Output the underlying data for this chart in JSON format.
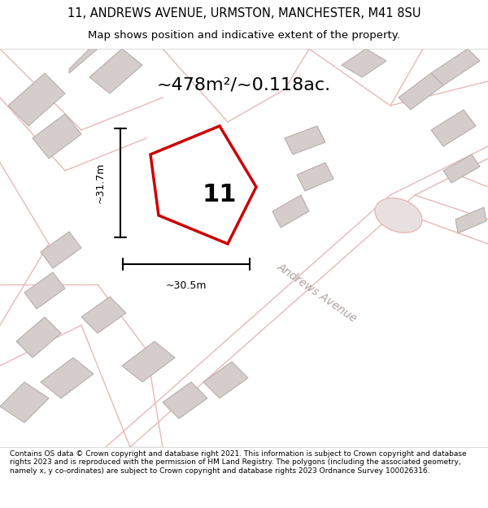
{
  "title_line1": "11, ANDREWS AVENUE, URMSTON, MANCHESTER, M41 8SU",
  "title_line2": "Map shows position and indicative extent of the property.",
  "area_label": "~478m²/~0.118ac.",
  "property_number": "11",
  "dim_vertical": "~31.7m",
  "dim_horizontal": "~30.5m",
  "street_label": "Andrews Avenue",
  "footer_text": "Contains OS data © Crown copyright and database right 2021. This information is subject to Crown copyright and database rights 2023 and is reproduced with the permission of HM Land Registry. The polygons (including the associated geometry, namely x, y co-ordinates) are subject to Crown copyright and database rights 2023 Ordnance Survey 100026316.",
  "bg_color": "#f5f0f0",
  "map_bg_color": "#f9f4f4",
  "plot_color_fill": "#ffffff",
  "plot_color_edge": "#cc0000",
  "building_fill": "#d8d0d0",
  "road_color": "#e8b8b8",
  "road_fill": "#ece4e4"
}
